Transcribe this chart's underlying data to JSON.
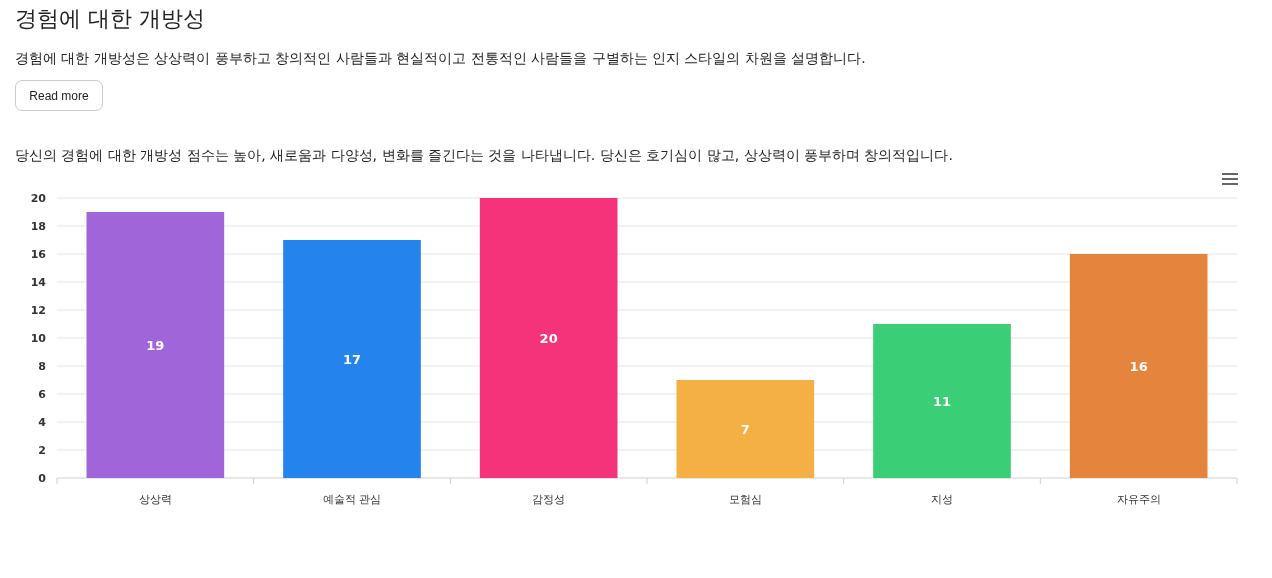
{
  "chart_data": {
    "type": "bar",
    "title": "경험에 대한 개방성",
    "subtitle": "경험에 대한 개방성은 상상력이 풍부하고 창의적인 사람들과 현실적이고 전통적인 사람들을 구별하는 인지 스타일의 차원을 설명합니다.",
    "annotations": [
      "Read more",
      "당신의 경험에 대한 개방성 점수는 높아, 새로움과 다양성, 변화를 즐긴다는 것을 나타냅니다. 당신은 호기심이 많고, 상상력이 풍부하며 창의적입니다."
    ],
    "categories": [
      "상상력",
      "예술적 관심",
      "감정성",
      "모험심",
      "지성",
      "자유주의"
    ],
    "values": [
      19,
      17,
      20,
      7,
      11,
      16
    ],
    "colors": [
      "#a066d9",
      "#2483ec",
      "#f5337a",
      "#f4b044",
      "#3acf76",
      "#e5843c"
    ],
    "ylim": [
      0,
      20
    ],
    "yticks": [
      0,
      2,
      4,
      6,
      8,
      10,
      12,
      14,
      16,
      18,
      20
    ],
    "grid": "y",
    "data_labels": true
  }
}
